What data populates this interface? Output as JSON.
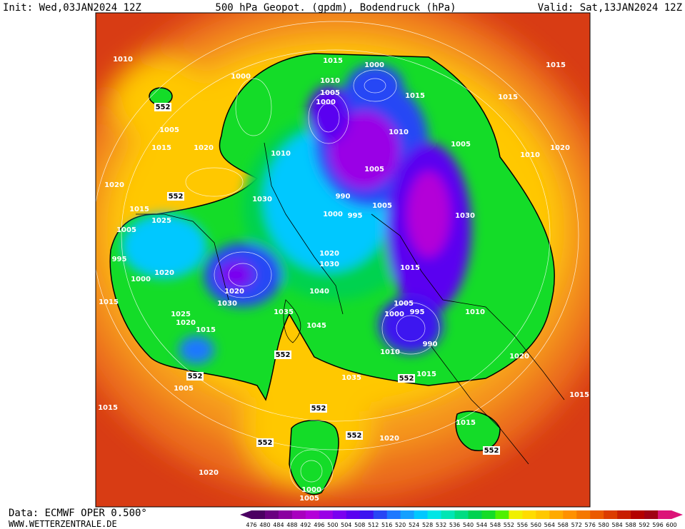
{
  "header": {
    "init": "Init: Wed,03JAN2024 12Z",
    "title": "500 hPa Geopot. (gpdm), Bodendruck (hPa)",
    "valid": "Valid: Sat,13JAN2024 12Z"
  },
  "footer": {
    "source": "Data: ECMWF OPER 0.500°",
    "site": "WWW.WETTERZENTRALE.DE"
  },
  "colorbar": {
    "levels": [
      476,
      480,
      484,
      488,
      492,
      496,
      500,
      504,
      508,
      512,
      516,
      520,
      524,
      528,
      532,
      536,
      540,
      544,
      548,
      552,
      556,
      560,
      564,
      568,
      572,
      576,
      580,
      584,
      588,
      592,
      596,
      600
    ],
    "colors": [
      "#4b0062",
      "#6a0080",
      "#8a00a0",
      "#a800be",
      "#b400d8",
      "#9a00e6",
      "#7a00f0",
      "#5a00f0",
      "#3c14f0",
      "#2846f5",
      "#1e78ff",
      "#14a0ff",
      "#00c8ff",
      "#00e6e6",
      "#00e6b4",
      "#00dc82",
      "#00d250",
      "#14dc28",
      "#50f000",
      "#f0f000",
      "#ffdc00",
      "#ffc800",
      "#ffaa00",
      "#ff9100",
      "#f57800",
      "#eb5a00",
      "#dc3c00",
      "#c81e00",
      "#b40000",
      "#a00014",
      "#dc1478"
    ]
  },
  "map": {
    "labels": [
      "1010",
      "552",
      "1000",
      "1015",
      "1000",
      "1010",
      "1005",
      "1000",
      "1015",
      "1015",
      "1015",
      "1005",
      "1015",
      "1020",
      "1010",
      "1010",
      "1005",
      "1010",
      "1020",
      "1005",
      "1020",
      "552",
      "1030",
      "990",
      "995",
      "1000",
      "1005",
      "1030",
      "1015",
      "1025",
      "1005",
      "1020",
      "1030",
      "1020",
      "1030",
      "1040",
      "1015",
      "995",
      "1000",
      "1020",
      "1015",
      "1005",
      "1000",
      "995",
      "1010",
      "1025",
      "1020",
      "1015",
      "1035",
      "1045",
      "990",
      "552",
      "1010",
      "1020",
      "552",
      "1005",
      "1035",
      "552",
      "1015",
      "1015",
      "1015",
      "552",
      "1015",
      "552",
      "552",
      "1020",
      "552",
      "1020",
      "1000",
      "1005"
    ]
  }
}
